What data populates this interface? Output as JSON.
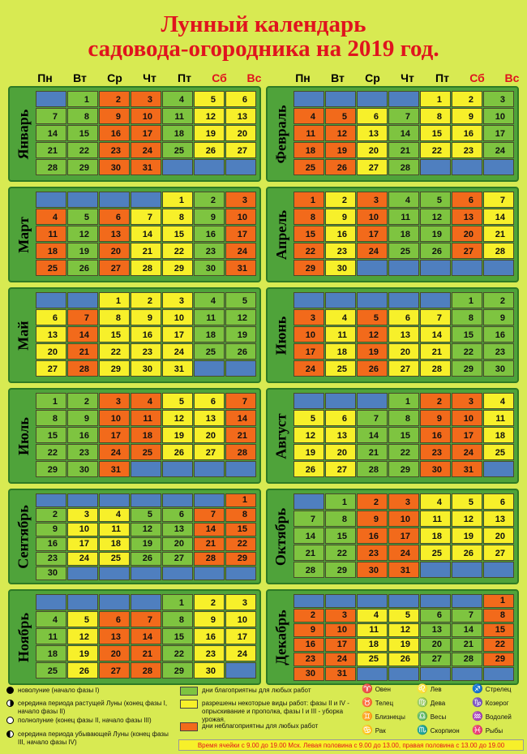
{
  "title": {
    "line1": "Лунный календарь",
    "line2": "садовода-огородника на 2019 год."
  },
  "weekdays": [
    {
      "label": "Пн",
      "we": false
    },
    {
      "label": "Вт",
      "we": false
    },
    {
      "label": "Ср",
      "we": false
    },
    {
      "label": "Чт",
      "we": false
    },
    {
      "label": "Пт",
      "we": false
    },
    {
      "label": "Сб",
      "we": true
    },
    {
      "label": "Вс",
      "we": true
    }
  ],
  "months": [
    {
      "name": "Январь",
      "start": 1,
      "days": 31,
      "col": 0,
      "row": 0,
      "colors": "gyrgygr"
    },
    {
      "name": "Февраль",
      "start": 4,
      "days": 28,
      "col": 1,
      "row": 0,
      "colors": "ygrgyyr"
    },
    {
      "name": "Март",
      "start": 4,
      "days": 31,
      "col": 0,
      "row": 1,
      "colors": "rgygryr"
    },
    {
      "name": "Апрель",
      "start": 0,
      "days": 30,
      "col": 1,
      "row": 1,
      "colors": "rgyygrr"
    },
    {
      "name": "Май",
      "start": 2,
      "days": 31,
      "col": 0,
      "row": 2,
      "colors": "yygyrgy"
    },
    {
      "name": "Июнь",
      "start": 5,
      "days": 30,
      "col": 1,
      "row": 2,
      "colors": "rgyygyr"
    },
    {
      "name": "Июль",
      "start": 0,
      "days": 31,
      "col": 0,
      "row": 3,
      "colors": "yrgyrgr"
    },
    {
      "name": "Август",
      "start": 3,
      "days": 31,
      "col": 1,
      "row": 3,
      "colors": "gyrgyyr"
    },
    {
      "name": "Сентябрь",
      "start": 6,
      "days": 30,
      "col": 0,
      "row": 4,
      "colors": "grgyrgy"
    },
    {
      "name": "Октябрь",
      "start": 1,
      "days": 31,
      "col": 1,
      "row": 4,
      "colors": "yrgyrgy"
    },
    {
      "name": "Ноябрь",
      "start": 4,
      "days": 30,
      "col": 0,
      "row": 5,
      "colors": "rgyryyg"
    },
    {
      "name": "Декабрь",
      "start": 6,
      "days": 31,
      "col": 1,
      "row": 5,
      "colors": "rgyrgyr"
    }
  ],
  "legend": {
    "moons": [
      {
        "type": "new",
        "text": "новолуние (начало фазы I)"
      },
      {
        "type": "grow",
        "text": "середина периода растущей Луны (конец фазы I, начало фазы II)"
      },
      {
        "type": "full",
        "text": "полнолуние (конец фазы II, начало фазы III)"
      },
      {
        "type": "wane",
        "text": "середина периода убывающей Луны (конец фазы III, начало фазы IV)"
      }
    ],
    "swatches": [
      {
        "color": "#7ec440",
        "text": "дни благоприятны для любых работ"
      },
      {
        "color": "#f7f02a",
        "text": "разрешены некоторые виды работ: фазы II и IV - опрыскивание и прополка, фазы I и III - уборка урожая."
      },
      {
        "color": "#f26a1b",
        "text": "дни неблагоприятны для любых работ"
      }
    ],
    "zodiac": [
      {
        "glyph": "♈",
        "name": "Овен"
      },
      {
        "glyph": "♌",
        "name": "Лев"
      },
      {
        "glyph": "♐",
        "name": "Стрелец"
      },
      {
        "glyph": "♉",
        "name": "Телец"
      },
      {
        "glyph": "♍",
        "name": "Дева"
      },
      {
        "glyph": "♑",
        "name": "Козерог"
      },
      {
        "glyph": "♊",
        "name": "Близнецы"
      },
      {
        "glyph": "♎",
        "name": "Весы"
      },
      {
        "glyph": "♒",
        "name": "Водолей"
      },
      {
        "glyph": "♋",
        "name": "Рак"
      },
      {
        "glyph": "♏",
        "name": "Скорпион"
      },
      {
        "glyph": "♓",
        "name": "Рыбы"
      }
    ]
  },
  "footer": "Время ячейки с 9.00 до 19.00 Мск. Левая половина с 9.00 до 13.00, правая половина с 13.00 до 19.00"
}
